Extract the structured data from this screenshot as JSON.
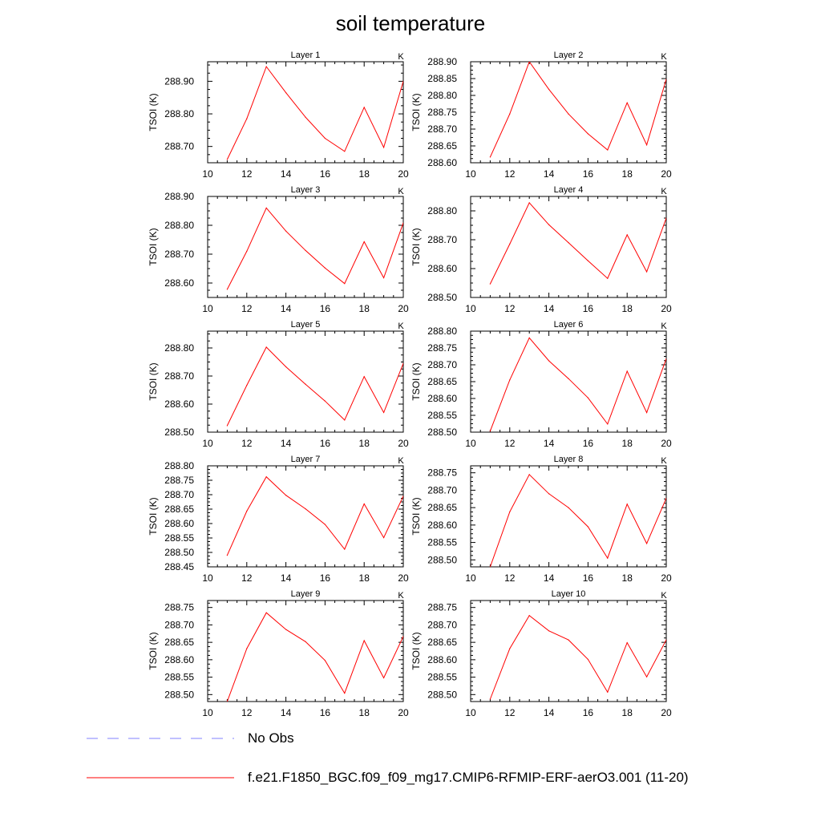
{
  "figure": {
    "title": "soil temperature",
    "legend": [
      {
        "label": "No Obs",
        "color": "#8080ff",
        "style": "dashed"
      },
      {
        "label": "f.e21.F1850_BGC.f09_f09_mg17.CMIP6-RFMIP-ERF-aerO3.001 (11-20)",
        "color": "#ff0000",
        "style": "solid"
      }
    ]
  },
  "chart_data": [
    {
      "type": "line",
      "title": "Layer 1",
      "units": "K",
      "ylabel": "TSOI  (K)",
      "xlim": [
        10,
        20
      ],
      "xticks": [
        10,
        12,
        14,
        16,
        18,
        20
      ],
      "ylim": [
        288.65,
        288.96
      ],
      "yticks": [
        "288.70",
        "288.80",
        "288.90"
      ],
      "x": [
        11,
        12,
        13,
        14,
        15,
        16,
        17,
        18,
        19,
        20
      ],
      "series": [
        {
          "name": "f.e21.F1850_BGC.f09_f09_mg17.CMIP6-RFMIP-ERF-aerO3.001 (11-20)",
          "color": "#ff0000",
          "values": [
            288.66,
            288.785,
            288.945,
            288.865,
            288.79,
            288.725,
            288.685,
            288.82,
            288.697,
            288.9
          ]
        }
      ]
    },
    {
      "type": "line",
      "title": "Layer 2",
      "units": "K",
      "ylabel": "TSOI  (K)",
      "xlim": [
        10,
        20
      ],
      "xticks": [
        10,
        12,
        14,
        16,
        18,
        20
      ],
      "ylim": [
        288.6,
        288.9
      ],
      "yticks": [
        "288.60",
        "288.65",
        "288.70",
        "288.75",
        "288.80",
        "288.85",
        "288.90"
      ],
      "x": [
        11,
        12,
        13,
        14,
        15,
        16,
        17,
        18,
        19,
        20
      ],
      "series": [
        {
          "name": "f.e21.F1850_BGC.f09_f09_mg17.CMIP6-RFMIP-ERF-aerO3.001 (11-20)",
          "color": "#ff0000",
          "values": [
            288.617,
            288.745,
            288.9,
            288.818,
            288.745,
            288.686,
            288.638,
            288.778,
            288.653,
            288.848
          ]
        }
      ]
    },
    {
      "type": "line",
      "title": "Layer 3",
      "units": "K",
      "ylabel": "TSOI  (K)",
      "xlim": [
        10,
        20
      ],
      "xticks": [
        10,
        12,
        14,
        16,
        18,
        20
      ],
      "ylim": [
        288.55,
        288.9
      ],
      "yticks": [
        "288.60",
        "288.70",
        "288.80",
        "288.90"
      ],
      "x": [
        11,
        12,
        13,
        14,
        15,
        16,
        17,
        18,
        19,
        20
      ],
      "series": [
        {
          "name": "f.e21.F1850_BGC.f09_f09_mg17.CMIP6-RFMIP-ERF-aerO3.001 (11-20)",
          "color": "#ff0000",
          "values": [
            288.578,
            288.71,
            288.86,
            288.78,
            288.713,
            288.652,
            288.598,
            288.743,
            288.618,
            288.808
          ]
        }
      ]
    },
    {
      "type": "line",
      "title": "Layer 4",
      "units": "K",
      "ylabel": "TSOI  (K)",
      "xlim": [
        10,
        20
      ],
      "xticks": [
        10,
        12,
        14,
        16,
        18,
        20
      ],
      "ylim": [
        288.5,
        288.85
      ],
      "yticks": [
        "288.50",
        "288.60",
        "288.70",
        "288.80"
      ],
      "x": [
        11,
        12,
        13,
        14,
        15,
        16,
        17,
        18,
        19,
        20
      ],
      "series": [
        {
          "name": "f.e21.F1850_BGC.f09_f09_mg17.CMIP6-RFMIP-ERF-aerO3.001 (11-20)",
          "color": "#ff0000",
          "values": [
            288.547,
            288.685,
            288.828,
            288.752,
            288.69,
            288.627,
            288.566,
            288.717,
            288.589,
            288.775
          ]
        }
      ]
    },
    {
      "type": "line",
      "title": "Layer 5",
      "units": "K",
      "ylabel": "TSOI  (K)",
      "xlim": [
        10,
        20
      ],
      "xticks": [
        10,
        12,
        14,
        16,
        18,
        20
      ],
      "ylim": [
        288.5,
        288.86
      ],
      "yticks": [
        "288.50",
        "288.60",
        "288.70",
        "288.80"
      ],
      "x": [
        11,
        12,
        13,
        14,
        15,
        16,
        17,
        18,
        19,
        20
      ],
      "series": [
        {
          "name": "f.e21.F1850_BGC.f09_f09_mg17.CMIP6-RFMIP-ERF-aerO3.001 (11-20)",
          "color": "#ff0000",
          "values": [
            288.523,
            288.667,
            288.803,
            288.733,
            288.671,
            288.611,
            288.543,
            288.698,
            288.57,
            288.745
          ]
        }
      ]
    },
    {
      "type": "line",
      "title": "Layer 6",
      "units": "K",
      "ylabel": "TSOI  (K)",
      "xlim": [
        10,
        20
      ],
      "xticks": [
        10,
        12,
        14,
        16,
        18,
        20
      ],
      "ylim": [
        288.5,
        288.8
      ],
      "yticks": [
        "288.50",
        "288.55",
        "288.60",
        "288.65",
        "288.70",
        "288.75",
        "288.80"
      ],
      "x": [
        11,
        12,
        13,
        14,
        15,
        16,
        17,
        18,
        19,
        20
      ],
      "series": [
        {
          "name": "f.e21.F1850_BGC.f09_f09_mg17.CMIP6-RFMIP-ERF-aerO3.001 (11-20)",
          "color": "#ff0000",
          "values": [
            288.503,
            288.655,
            288.78,
            288.712,
            288.659,
            288.602,
            288.524,
            288.681,
            288.558,
            288.718
          ]
        }
      ]
    },
    {
      "type": "line",
      "title": "Layer 7",
      "units": "K",
      "ylabel": "TSOI  (K)",
      "xlim": [
        10,
        20
      ],
      "xticks": [
        10,
        12,
        14,
        16,
        18,
        20
      ],
      "ylim": [
        288.45,
        288.8
      ],
      "yticks": [
        "288.45",
        "288.50",
        "288.55",
        "288.60",
        "288.65",
        "288.70",
        "288.75",
        "288.80"
      ],
      "x": [
        11,
        12,
        13,
        14,
        15,
        16,
        17,
        18,
        19,
        20
      ],
      "series": [
        {
          "name": "f.e21.F1850_BGC.f09_f09_mg17.CMIP6-RFMIP-ERF-aerO3.001 (11-20)",
          "color": "#ff0000",
          "values": [
            288.49,
            288.643,
            288.762,
            288.698,
            288.651,
            288.597,
            288.511,
            288.668,
            288.551,
            288.695
          ]
        }
      ]
    },
    {
      "type": "line",
      "title": "Layer 8",
      "units": "K",
      "ylabel": "TSOI  (K)",
      "xlim": [
        10,
        20
      ],
      "xticks": [
        10,
        12,
        14,
        16,
        18,
        20
      ],
      "ylim": [
        288.48,
        288.77
      ],
      "yticks": [
        "288.50",
        "288.55",
        "288.60",
        "288.65",
        "288.70",
        "288.75"
      ],
      "x": [
        11,
        12,
        13,
        14,
        15,
        16,
        17,
        18,
        19,
        20
      ],
      "series": [
        {
          "name": "f.e21.F1850_BGC.f09_f09_mg17.CMIP6-RFMIP-ERF-aerO3.001 (11-20)",
          "color": "#ff0000",
          "values": [
            288.48,
            288.638,
            288.745,
            288.69,
            288.65,
            288.595,
            288.505,
            288.66,
            288.547,
            288.677
          ]
        }
      ]
    },
    {
      "type": "line",
      "title": "Layer 9",
      "units": "K",
      "ylabel": "TSOI  (K)",
      "xlim": [
        10,
        20
      ],
      "xticks": [
        10,
        12,
        14,
        16,
        18,
        20
      ],
      "ylim": [
        288.48,
        288.77
      ],
      "yticks": [
        "288.50",
        "288.55",
        "288.60",
        "288.65",
        "288.70",
        "288.75"
      ],
      "x": [
        11,
        12,
        13,
        14,
        15,
        16,
        17,
        18,
        19,
        20
      ],
      "series": [
        {
          "name": "f.e21.F1850_BGC.f09_f09_mg17.CMIP6-RFMIP-ERF-aerO3.001 (11-20)",
          "color": "#ff0000",
          "values": [
            288.48,
            288.632,
            288.735,
            288.687,
            288.652,
            288.598,
            288.504,
            288.655,
            288.548,
            288.667
          ]
        }
      ]
    },
    {
      "type": "line",
      "title": "Layer 10",
      "units": "K",
      "ylabel": "TSOI  (K)",
      "xlim": [
        10,
        20
      ],
      "xticks": [
        10,
        12,
        14,
        16,
        18,
        20
      ],
      "ylim": [
        288.48,
        288.77
      ],
      "yticks": [
        "288.50",
        "288.55",
        "288.60",
        "288.65",
        "288.70",
        "288.75"
      ],
      "x": [
        11,
        12,
        13,
        14,
        15,
        16,
        17,
        18,
        19,
        20
      ],
      "series": [
        {
          "name": "f.e21.F1850_BGC.f09_f09_mg17.CMIP6-RFMIP-ERF-aerO3.001 (11-20)",
          "color": "#ff0000",
          "values": [
            288.487,
            288.632,
            288.727,
            288.683,
            288.657,
            288.601,
            288.507,
            288.649,
            288.551,
            288.657
          ]
        }
      ]
    }
  ]
}
